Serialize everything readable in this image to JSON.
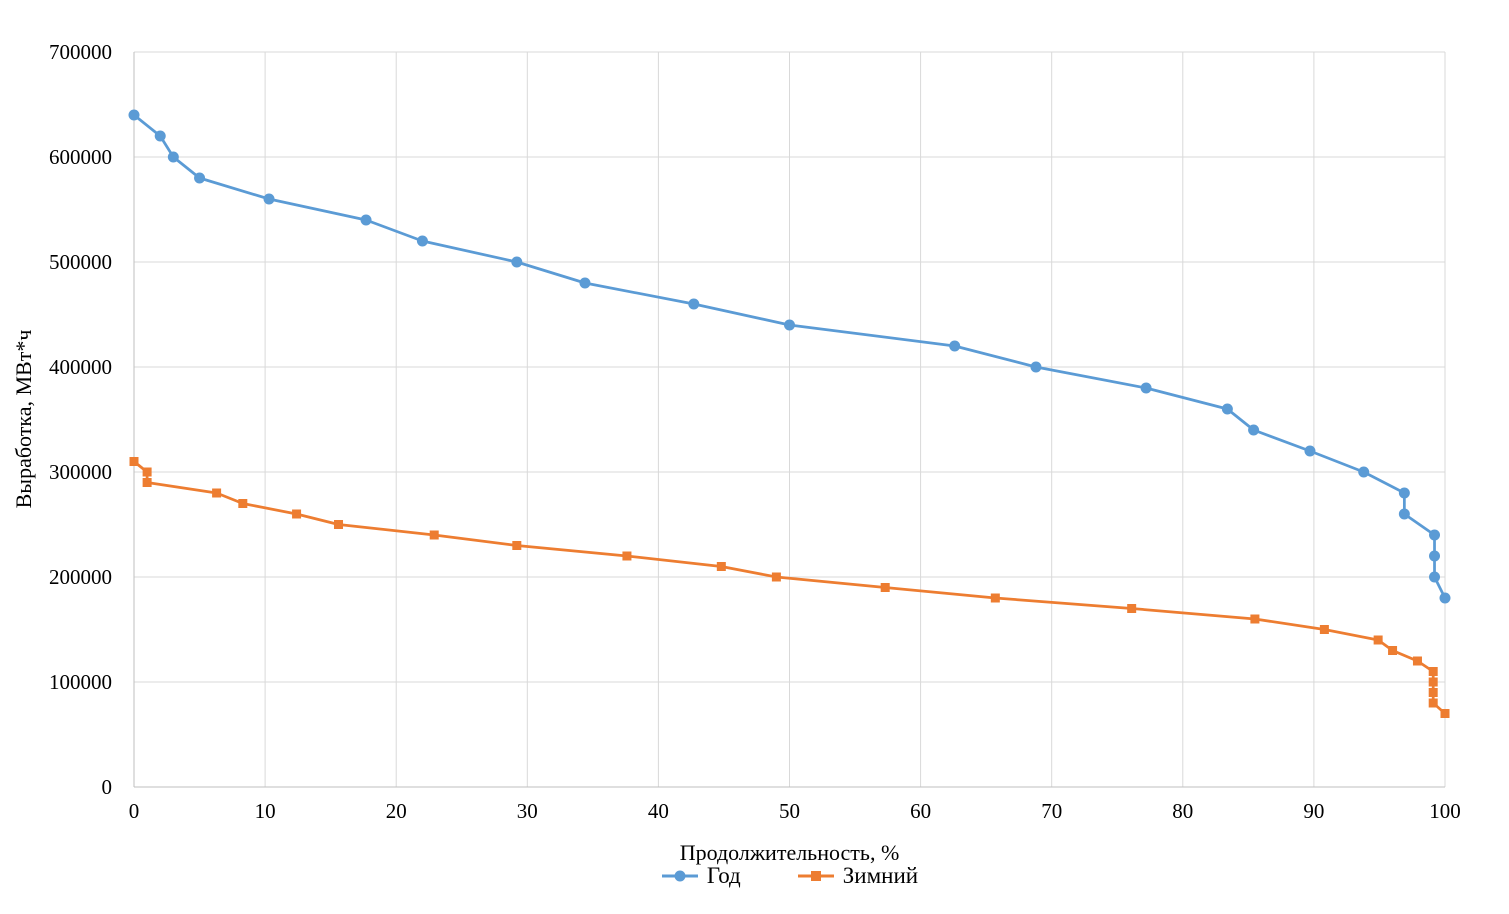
{
  "chart_data": {
    "type": "line",
    "title": "",
    "xlabel": "Продолжительность, %",
    "ylabel": "Выработка, МВт*ч",
    "xlim": [
      0,
      100
    ],
    "ylim": [
      0,
      700000
    ],
    "x_ticks": [
      0,
      10,
      20,
      30,
      40,
      50,
      60,
      70,
      80,
      90,
      100
    ],
    "y_ticks": [
      0,
      100000,
      200000,
      300000,
      400000,
      500000,
      600000,
      700000
    ],
    "grid": true,
    "legend_position": "bottom-center",
    "series": [
      {
        "name": "Год",
        "color": "#5B9BD5",
        "marker": "circle",
        "x": [
          0,
          2,
          3,
          5,
          10.3,
          17.7,
          22,
          29.2,
          34.4,
          42.7,
          50,
          62.6,
          68.8,
          77.2,
          83.4,
          85.4,
          89.7,
          93.8,
          96.9,
          96.9,
          99.2,
          99.2,
          99.2,
          100
        ],
        "y": [
          640000,
          620000,
          600000,
          580000,
          560000,
          540000,
          520000,
          500000,
          480000,
          460000,
          440000,
          420000,
          400000,
          380000,
          360000,
          340000,
          320000,
          300000,
          280000,
          260000,
          240000,
          220000,
          200000,
          180000
        ]
      },
      {
        "name": "Зимний",
        "color": "#ED7D31",
        "marker": "square",
        "x": [
          0,
          1,
          1,
          6.3,
          8.3,
          12.4,
          15.6,
          22.9,
          29.2,
          37.6,
          44.8,
          49,
          57.3,
          65.7,
          76.1,
          85.5,
          90.8,
          94.9,
          96,
          97.9,
          99.1,
          99.1,
          99.1,
          99.1,
          100
        ],
        "y": [
          310000,
          300000,
          290000,
          280000,
          270000,
          260000,
          250000,
          240000,
          230000,
          220000,
          210000,
          200000,
          190000,
          180000,
          170000,
          160000,
          150000,
          140000,
          130000,
          120000,
          110000,
          100000,
          90000,
          80000,
          70000
        ]
      }
    ]
  },
  "legend": {
    "items": [
      {
        "label": "Год",
        "color": "#5B9BD5",
        "marker": "circle"
      },
      {
        "label": "Зимний",
        "color": "#ED7D31",
        "marker": "square"
      }
    ]
  },
  "styles": {
    "background": "#FFFFFF",
    "grid_color": "#D9D9D9",
    "axis_color": "#BFBFBF",
    "text_color": "#000000",
    "series_blue": "#5B9BD5",
    "series_orange": "#ED7D31"
  }
}
